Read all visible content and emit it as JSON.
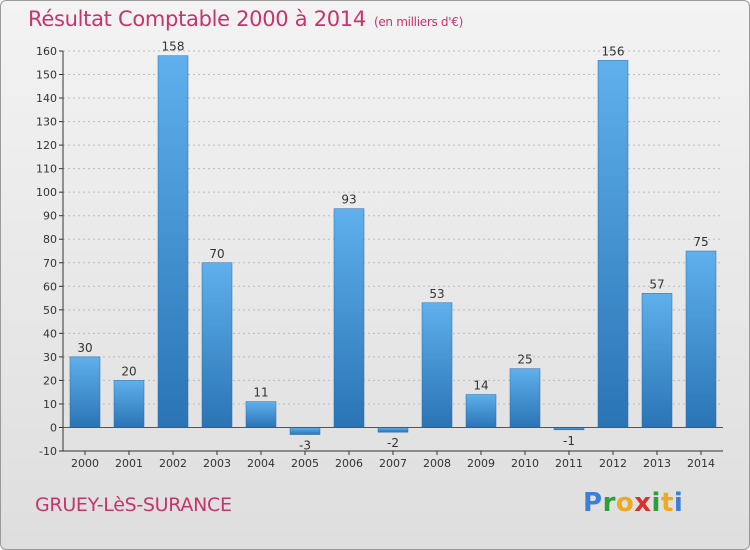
{
  "header": {
    "title": "Résultat Comptable 2000 à 2014",
    "subtitle": "(en milliers d'€)"
  },
  "footer": {
    "place": "GRUEY-LèS-SURANCE",
    "brand_letters": [
      {
        "ch": "P",
        "color": "#3b7fd8"
      },
      {
        "ch": "r",
        "color": "#2f9e3a"
      },
      {
        "ch": "o",
        "color": "#f0a81c"
      },
      {
        "ch": "x",
        "color": "#d8312e"
      },
      {
        "ch": "i",
        "color": "#2f9e3a"
      },
      {
        "ch": "t",
        "color": "#f0a81c"
      },
      {
        "ch": "i",
        "color": "#3b7fd8"
      }
    ]
  },
  "colors": {
    "bar_top": "#5fb0ec",
    "bar_bottom": "#2a74b5",
    "axis": "#333333",
    "grid": "#bbbbbb"
  },
  "chart_data": {
    "type": "bar",
    "title": "Résultat Comptable 2000 à 2014",
    "categories": [
      "2000",
      "2001",
      "2002",
      "2003",
      "2004",
      "2005",
      "2006",
      "2007",
      "2008",
      "2009",
      "2010",
      "2011",
      "2012",
      "2013",
      "2014"
    ],
    "values": [
      30,
      20,
      158,
      70,
      11,
      -3,
      93,
      -2,
      53,
      14,
      25,
      -1,
      156,
      57,
      75
    ],
    "ylim": [
      -10,
      160
    ],
    "yticks": [
      -10,
      0,
      10,
      20,
      30,
      40,
      50,
      60,
      70,
      80,
      90,
      100,
      110,
      120,
      130,
      140,
      150,
      160
    ],
    "grid": true,
    "xlabel": "",
    "ylabel": ""
  }
}
